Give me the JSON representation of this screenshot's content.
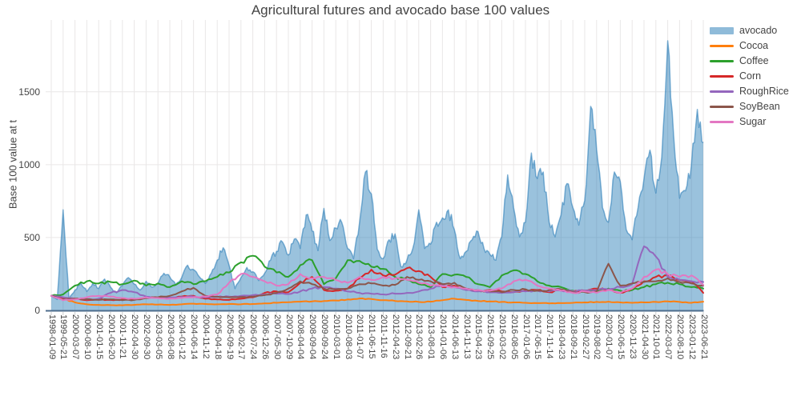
{
  "colors": {
    "text": "#444444",
    "grid": "#e9e7e7",
    "axis_line": "#4e6d8d",
    "tick_mark": "#cccccc",
    "background": "#ffffff"
  },
  "chart_data": {
    "type": "area+line",
    "title": "Agricultural futures and avocado base 100 values",
    "xlabel": "",
    "ylabel": "Base 100 value at t",
    "ylim": [
      0,
      1993
    ],
    "y_ticks": [
      0,
      500,
      1000,
      1500
    ],
    "grid": true,
    "legend_position": "right",
    "x_tick_labels": [
      "1998-01-09",
      "1999-05-21",
      "2000-03-07",
      "2000-08-10",
      "2001-01-15",
      "2001-06-20",
      "2001-11-21",
      "2002-04-30",
      "2002-09-30",
      "2003-03-05",
      "2003-08-08",
      "2004-01-12",
      "2004-06-14",
      "2004-11-12",
      "2005-04-18",
      "2005-09-19",
      "2006-02-17",
      "2006-07-24",
      "2006-12-26",
      "2007-05-30",
      "2007-10-29",
      "2008-04-04",
      "2008-09-04",
      "2009-09-24",
      "2010-03-01",
      "2010-08-03",
      "2011-01-07",
      "2011-06-15",
      "2011-11-16",
      "2012-04-23",
      "2012-09-21",
      "2013-02-26",
      "2013-08-01",
      "2014-01-06",
      "2014-06-13",
      "2014-11-13",
      "2015-04-23",
      "2015-09-25",
      "2016-03-02",
      "2016-08-05",
      "2017-01-06",
      "2017-06-15",
      "2017-11-14",
      "2018-04-23",
      "2018-09-21",
      "2019-02-27",
      "2019-08-02",
      "2020-01-07",
      "2020-06-15",
      "2020-11-23",
      "2021-04-30",
      "2021-10-01",
      "2022-03-07",
      "2022-08-10",
      "2023-01-12",
      "2023-06-21"
    ],
    "series": [
      {
        "name": "avocado",
        "type": "area",
        "color": "#1f77b4",
        "fill_opacity": 0.45,
        "x_step": 0.5,
        "values": [
          100,
          75,
          690,
          80,
          140,
          190,
          130,
          185,
          150,
          215,
          160,
          120,
          170,
          225,
          180,
          140,
          200,
          160,
          185,
          255,
          230,
          175,
          225,
          310,
          280,
          230,
          185,
          255,
          345,
          430,
          310,
          150,
          225,
          295,
          265,
          205,
          255,
          345,
          405,
          470,
          380,
          490,
          425,
          655,
          545,
          410,
          700,
          480,
          565,
          605,
          425,
          355,
          600,
          950,
          800,
          420,
          355,
          485,
          525,
          300,
          345,
          425,
          690,
          425,
          455,
          605,
          635,
          690,
          555,
          355,
          405,
          485,
          540,
          425,
          385,
          345,
          505,
          930,
          705,
          505,
          605,
          1080,
          905,
          950,
          605,
          505,
          655,
          870,
          705,
          585,
          755,
          1400,
          1105,
          705,
          605,
          950,
          885,
          555,
          485,
          705,
          905,
          1100,
          805,
          1055,
          1850,
          1200,
          770,
          820,
          1000,
          1380,
          1150
        ]
      },
      {
        "name": "Cocoa",
        "type": "line",
        "color": "#ff7f0e",
        "x_step": 1,
        "values": [
          100,
          80,
          55,
          42,
          38,
          36,
          35,
          38,
          42,
          40,
          38,
          42,
          46,
          44,
          42,
          44,
          42,
          44,
          48,
          52,
          56,
          60,
          62,
          64,
          68,
          75,
          82,
          78,
          70,
          65,
          62,
          58,
          60,
          70,
          80,
          72,
          65,
          62,
          58,
          55,
          52,
          50,
          48,
          50,
          52,
          55,
          58,
          60,
          55,
          52,
          55,
          58,
          62,
          58,
          52,
          60
        ]
      },
      {
        "name": "Coffee",
        "type": "line",
        "color": "#2ca02c",
        "x_step": 1,
        "values": [
          100,
          110,
          170,
          200,
          185,
          195,
          180,
          205,
          170,
          185,
          160,
          200,
          180,
          200,
          230,
          260,
          330,
          375,
          300,
          260,
          230,
          310,
          345,
          180,
          220,
          345,
          340,
          300,
          285,
          230,
          210,
          180,
          160,
          250,
          245,
          230,
          180,
          160,
          240,
          275,
          250,
          200,
          170,
          160,
          135,
          130,
          135,
          150,
          135,
          140,
          160,
          180,
          190,
          180,
          160,
          150
        ]
      },
      {
        "name": "Corn",
        "type": "line",
        "color": "#d62728",
        "x_step": 1,
        "values": [
          100,
          85,
          80,
          70,
          75,
          72,
          75,
          78,
          90,
          88,
          85,
          95,
          100,
          80,
          75,
          72,
          80,
          90,
          120,
          130,
          125,
          190,
          230,
          140,
          135,
          150,
          220,
          280,
          240,
          245,
          290,
          270,
          230,
          160,
          170,
          140,
          135,
          140,
          130,
          125,
          135,
          140,
          125,
          140,
          130,
          135,
          150,
          140,
          120,
          150,
          200,
          230,
          240,
          210,
          200,
          120
        ]
      },
      {
        "name": "RoughRice",
        "type": "line",
        "color": "#9467bd",
        "x_step": 1,
        "values": [
          100,
          90,
          78,
          75,
          80,
          120,
          140,
          125,
          95,
          85,
          88,
          92,
          95,
          90,
          92,
          95,
          100,
          105,
          110,
          115,
          112,
          130,
          150,
          160,
          150,
          130,
          120,
          115,
          110,
          115,
          120,
          130,
          150,
          180,
          160,
          140,
          130,
          125,
          120,
          125,
          130,
          135,
          130,
          135,
          130,
          135,
          140,
          145,
          160,
          180,
          440,
          370,
          230,
          210,
          200,
          195
        ]
      },
      {
        "name": "SoyBean",
        "type": "line",
        "color": "#8c564b",
        "x_step": 1,
        "values": [
          100,
          75,
          80,
          78,
          72,
          75,
          70,
          72,
          85,
          90,
          100,
          130,
          155,
          100,
          95,
          90,
          92,
          95,
          105,
          120,
          150,
          200,
          180,
          150,
          145,
          150,
          180,
          185,
          170,
          175,
          230,
          210,
          200,
          180,
          190,
          150,
          140,
          130,
          125,
          140,
          145,
          135,
          140,
          145,
          125,
          125,
          130,
          320,
          170,
          185,
          195,
          200,
          220,
          195,
          185,
          170
        ]
      },
      {
        "name": "Sugar",
        "type": "line",
        "color": "#e377c2",
        "x_step": 1,
        "values": [
          100,
          70,
          75,
          90,
          100,
          95,
          85,
          80,
          90,
          85,
          80,
          85,
          90,
          95,
          110,
          190,
          250,
          230,
          200,
          170,
          180,
          250,
          220,
          230,
          210,
          190,
          230,
          210,
          230,
          220,
          210,
          190,
          170,
          165,
          160,
          150,
          140,
          135,
          150,
          200,
          210,
          170,
          150,
          135,
          120,
          130,
          120,
          140,
          120,
          150,
          230,
          280,
          250,
          230,
          240,
          175
        ]
      }
    ]
  }
}
